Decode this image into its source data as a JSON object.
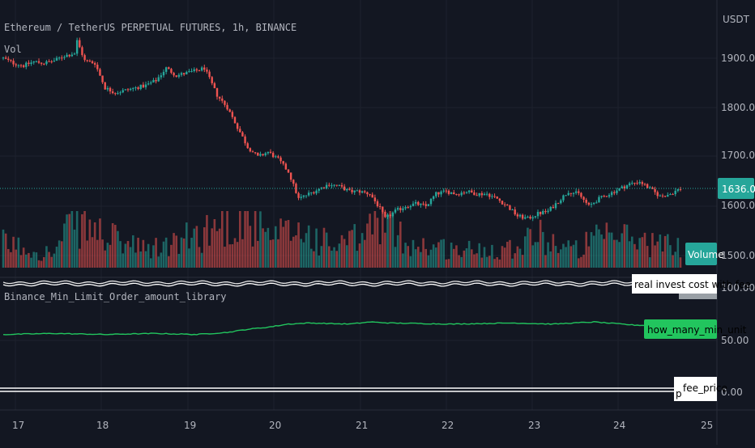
{
  "header": {
    "symbol_title": "Ethereum / TetherUS PERPETUAL FUTURES, 1h, BINANCE",
    "volume_label": "Vol",
    "indicator_title": "Binance_Min_Limit_Order_amount_library"
  },
  "price_axis": {
    "currency": "USDT",
    "ticks": [
      "1900.00",
      "1800.00",
      "1700.00",
      "1600.00",
      "1500.00"
    ],
    "current_price": "1636.01"
  },
  "indicator_axis": {
    "ticks": [
      "100.00",
      "50.00",
      "0.00"
    ]
  },
  "time_axis": {
    "ticks": [
      "17",
      "18",
      "19",
      "20",
      "21",
      "22",
      "23",
      "24",
      "25"
    ]
  },
  "tags": {
    "volume": "Volume",
    "real_invest": "real invest cost with fee",
    "how_many": "how_many_min_unit",
    "fee_price": "fee_price",
    "fee_price_prefix": "p"
  },
  "colors": {
    "background": "#131722",
    "up": "#26a69a",
    "down": "#ef5350",
    "indicator_line": "#22c55e",
    "current_price_tag": "#26a69a",
    "white_line": "#e6e6e6"
  },
  "chart_data": {
    "type": "candlestick",
    "timeframe": "1h",
    "x_labels": [
      "17",
      "18",
      "19",
      "20",
      "21",
      "22",
      "23",
      "24",
      "25"
    ],
    "price_range": [
      1480,
      1940
    ],
    "anchors": [
      [
        0,
        1900
      ],
      [
        4,
        1890
      ],
      [
        8,
        1885
      ],
      [
        12,
        1893
      ],
      [
        16,
        1890
      ],
      [
        20,
        1895
      ],
      [
        24,
        1905
      ],
      [
        28,
        1910
      ],
      [
        29,
        1935
      ],
      [
        32,
        1895
      ],
      [
        36,
        1890
      ],
      [
        40,
        1840
      ],
      [
        44,
        1830
      ],
      [
        48,
        1835
      ],
      [
        52,
        1840
      ],
      [
        56,
        1845
      ],
      [
        60,
        1855
      ],
      [
        64,
        1880
      ],
      [
        68,
        1865
      ],
      [
        72,
        1870
      ],
      [
        76,
        1875
      ],
      [
        79,
        1880
      ],
      [
        84,
        1825
      ],
      [
        88,
        1800
      ],
      [
        92,
        1760
      ],
      [
        96,
        1720
      ],
      [
        100,
        1700
      ],
      [
        104,
        1710
      ],
      [
        108,
        1695
      ],
      [
        112,
        1670
      ],
      [
        116,
        1615
      ],
      [
        120,
        1625
      ],
      [
        124,
        1635
      ],
      [
        128,
        1645
      ],
      [
        132,
        1640
      ],
      [
        136,
        1630
      ],
      [
        140,
        1630
      ],
      [
        144,
        1625
      ],
      [
        148,
        1595
      ],
      [
        150,
        1575
      ],
      [
        154,
        1590
      ],
      [
        158,
        1600
      ],
      [
        162,
        1605
      ],
      [
        166,
        1600
      ],
      [
        170,
        1625
      ],
      [
        174,
        1630
      ],
      [
        178,
        1625
      ],
      [
        182,
        1630
      ],
      [
        186,
        1625
      ],
      [
        190,
        1625
      ],
      [
        194,
        1615
      ],
      [
        198,
        1600
      ],
      [
        202,
        1580
      ],
      [
        206,
        1575
      ],
      [
        210,
        1585
      ],
      [
        214,
        1590
      ],
      [
        218,
        1610
      ],
      [
        222,
        1630
      ],
      [
        226,
        1625
      ],
      [
        230,
        1600
      ],
      [
        234,
        1615
      ],
      [
        238,
        1625
      ],
      [
        242,
        1635
      ],
      [
        246,
        1645
      ],
      [
        250,
        1650
      ],
      [
        254,
        1635
      ],
      [
        258,
        1620
      ],
      [
        262,
        1625
      ],
      [
        266,
        1636
      ]
    ],
    "volume_profile": [
      [
        0,
        35
      ],
      [
        20,
        20
      ],
      [
        28,
        70
      ],
      [
        40,
        45
      ],
      [
        56,
        25
      ],
      [
        68,
        35
      ],
      [
        80,
        55
      ],
      [
        96,
        75
      ],
      [
        104,
        40
      ],
      [
        116,
        55
      ],
      [
        130,
        30
      ],
      [
        142,
        45
      ],
      [
        148,
        80
      ],
      [
        152,
        55
      ],
      [
        160,
        35
      ],
      [
        180,
        25
      ],
      [
        200,
        30
      ],
      [
        208,
        50
      ],
      [
        224,
        25
      ],
      [
        232,
        40
      ],
      [
        244,
        45
      ],
      [
        256,
        35
      ],
      [
        266,
        30
      ]
    ],
    "indicators": {
      "real_invest_cost_with_fee": 100,
      "how_many_min_unit": [
        [
          0,
          53
        ],
        [
          20,
          54
        ],
        [
          40,
          53
        ],
        [
          60,
          54
        ],
        [
          76,
          53
        ],
        [
          88,
          55
        ],
        [
          96,
          58
        ],
        [
          104,
          60
        ],
        [
          112,
          63
        ],
        [
          120,
          64
        ],
        [
          136,
          63
        ],
        [
          144,
          65
        ],
        [
          152,
          64
        ],
        [
          176,
          63
        ],
        [
          200,
          64
        ],
        [
          216,
          63
        ],
        [
          232,
          65
        ],
        [
          248,
          62
        ],
        [
          266,
          61
        ]
      ],
      "fee_price": 0
    },
    "indicator_range": [
      -5,
      115
    ]
  }
}
